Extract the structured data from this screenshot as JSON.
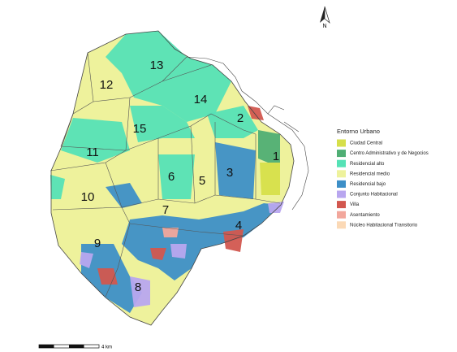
{
  "map": {
    "north_label": "N",
    "comuna_labels": [
      "1",
      "2",
      "3",
      "4",
      "5",
      "6",
      "7",
      "8",
      "9",
      "10",
      "11",
      "12",
      "13",
      "14",
      "15"
    ],
    "legend": {
      "title": "Entorno Urbano",
      "items": [
        {
          "label": "Ciudad Central",
          "color": "#d6df4a"
        },
        {
          "label": "Centro Administrativo y de Negocios",
          "color": "#4fae74"
        },
        {
          "label": "Residencial alto",
          "color": "#55e2b6"
        },
        {
          "label": "Residencial medio",
          "color": "#eef29c"
        },
        {
          "label": "Residencial bajo",
          "color": "#3d8fc7"
        },
        {
          "label": "Conjunto Habitacional",
          "color": "#b8a6ef"
        },
        {
          "label": "Villa",
          "color": "#d2574f"
        },
        {
          "label": "Asentamiento",
          "color": "#f2a79c"
        },
        {
          "label": "Núcleo Habitacional Transitorio",
          "color": "#fbd9b6"
        }
      ]
    },
    "scale_label": "4 km"
  }
}
